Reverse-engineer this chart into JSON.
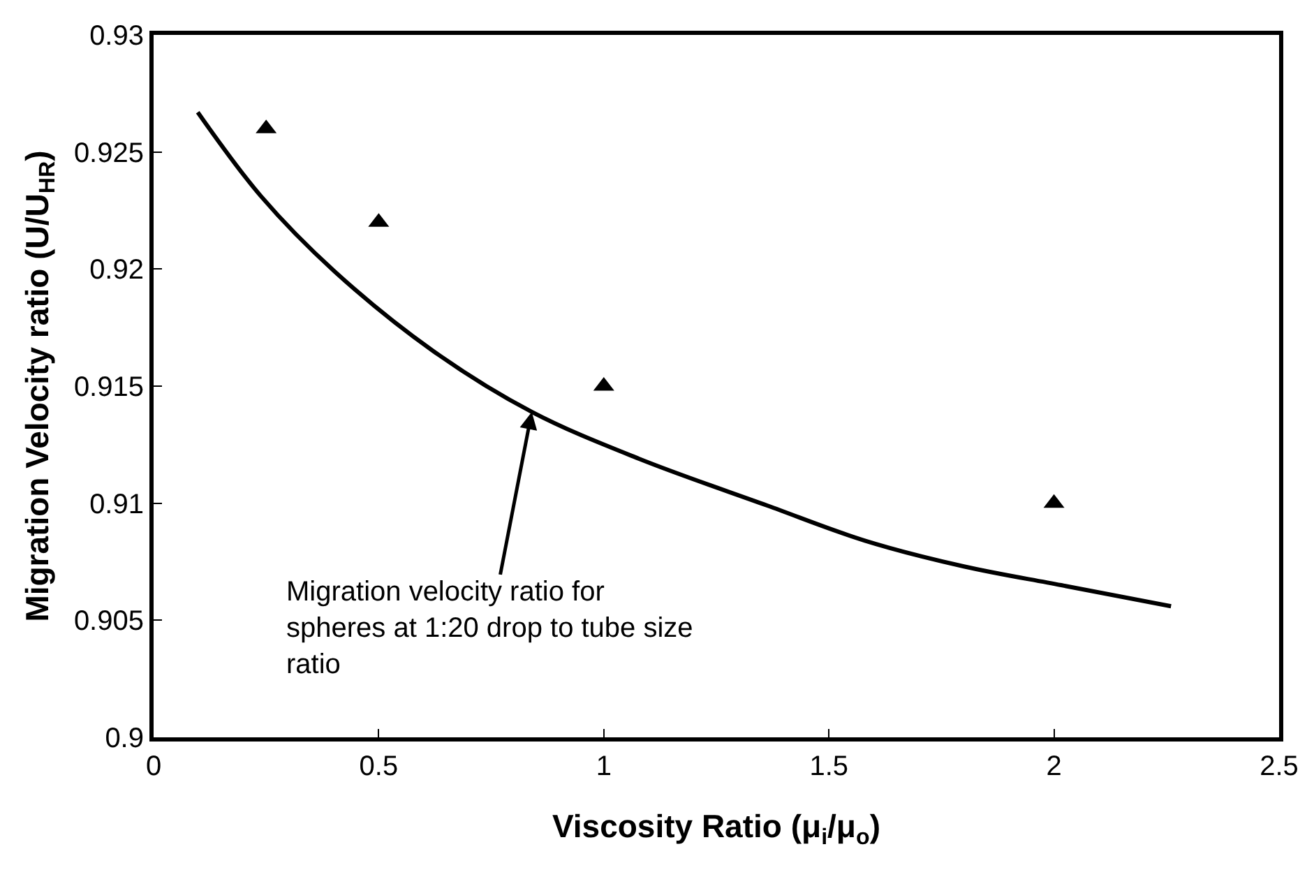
{
  "chart_data": {
    "type": "scatter",
    "xlabel": "Viscosity Ratio (μ$_{i}$/μ$_{o}$)",
    "ylabel": "Migration Velocity ratio (U/U$_{HR}$)",
    "xlim": [
      0,
      2.5
    ],
    "xticks": [
      0,
      0.5,
      1,
      1.5,
      2,
      2.5
    ],
    "ylim": [
      0.9,
      0.93
    ],
    "yticks": [
      0.9,
      0.905,
      0.91,
      0.915,
      0.92,
      0.925,
      0.93
    ],
    "series": [
      {
        "type": "line",
        "color": "#000000",
        "marker": "none",
        "line_style": "solid",
        "x": [
          0.098,
          0.239,
          0.402,
          0.621,
          0.84,
          1.078,
          1.363,
          1.58,
          1.8,
          2.016,
          2.26
        ],
        "values": [
          0.9267,
          0.9231,
          0.9199,
          0.9165,
          0.9139,
          0.9119,
          0.9099,
          0.9084,
          0.9073,
          0.9065,
          0.9056
        ]
      },
      {
        "color": "#000000",
        "marker": "triangle",
        "x": [
          0.25,
          0.5,
          1,
          2
        ],
        "values": [
          0.926,
          0.922,
          0.915,
          0.91
        ]
      }
    ],
    "annotations": [
      {
        "text": "Migration velocity ratio for spheres at 1:20 drop to tube size ratio",
        "x": 0.84,
        "y": 0.9139
      }
    ]
  }
}
